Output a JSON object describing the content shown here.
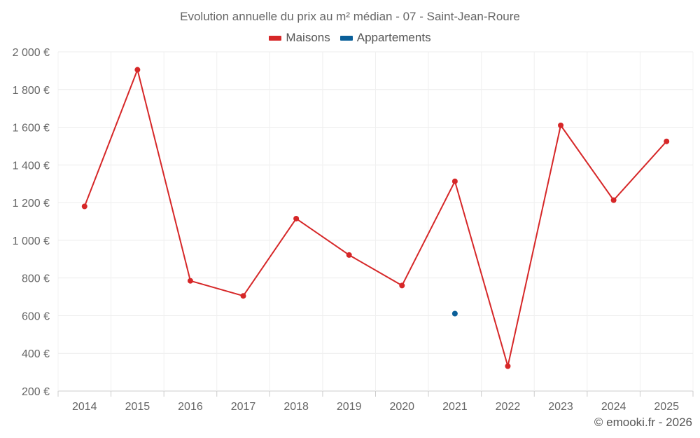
{
  "chart_data": {
    "type": "line",
    "title": "Evolution annuelle du prix au m² médian - 07 - Saint-Jean-Roure",
    "xlabel": "",
    "ylabel": "",
    "categories": [
      "2014",
      "2015",
      "2016",
      "2017",
      "2018",
      "2019",
      "2020",
      "2021",
      "2022",
      "2023",
      "2024",
      "2025"
    ],
    "y_ticks": [
      200,
      400,
      600,
      800,
      1000,
      1200,
      1400,
      1600,
      1800,
      2000
    ],
    "y_tick_labels": [
      "200 €",
      "400 €",
      "600 €",
      "800 €",
      "1 000 €",
      "1 200 €",
      "1 400 €",
      "1 600 €",
      "1 800 €",
      "2 000 €"
    ],
    "ylim": [
      200,
      2000
    ],
    "grid": true,
    "legend_position": "top-center",
    "series": [
      {
        "name": "Maisons",
        "color": "#d62728",
        "values": [
          1180,
          1905,
          785,
          705,
          1115,
          922,
          760,
          1313,
          332,
          1610,
          1213,
          1525
        ]
      },
      {
        "name": "Appartements",
        "color": "#0a5f99",
        "values": [
          null,
          null,
          null,
          null,
          null,
          null,
          null,
          611,
          null,
          null,
          null,
          null
        ]
      }
    ]
  },
  "credit": "© emooki.fr - 2026"
}
